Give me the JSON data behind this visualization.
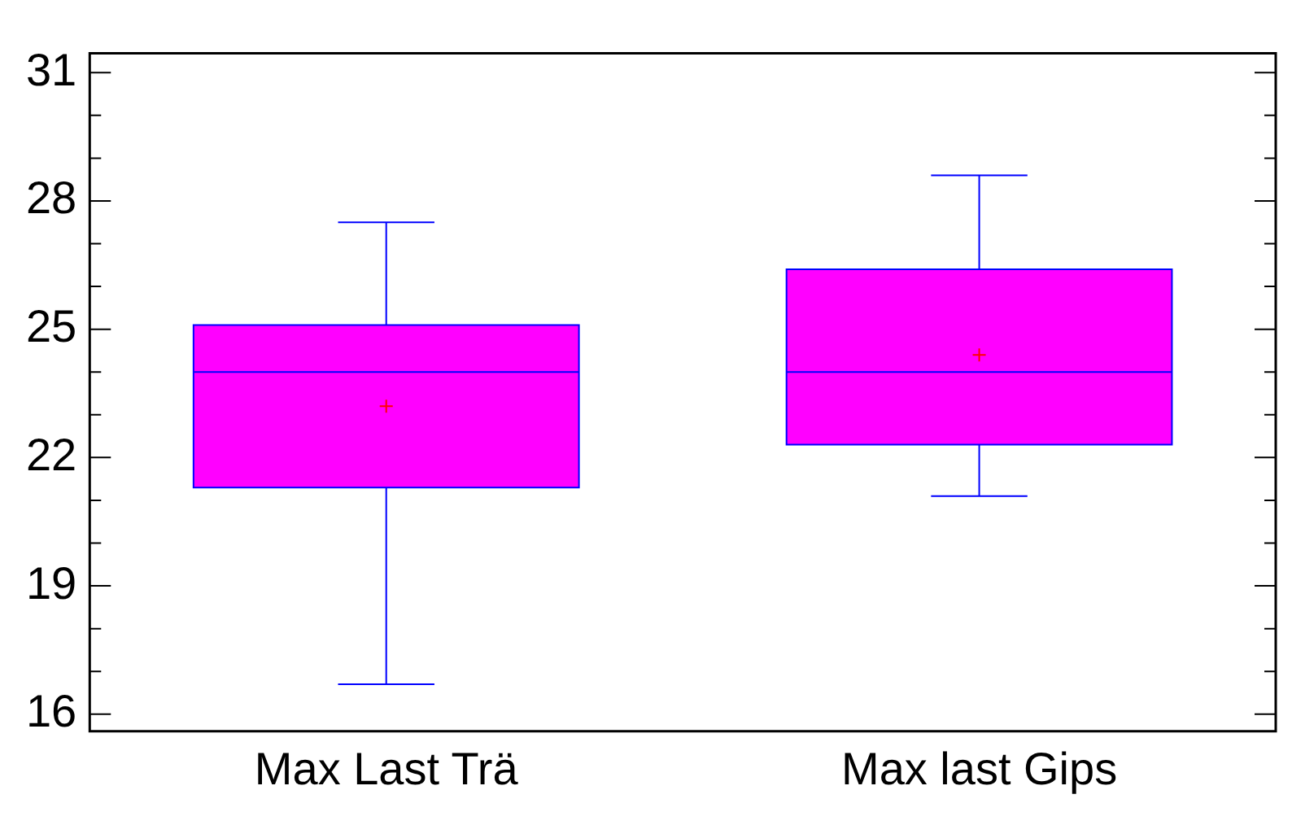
{
  "chart_data": {
    "type": "box",
    "categories": [
      "Max Last Trä",
      "Max last Gips"
    ],
    "series": [
      {
        "color": "#ff00ff",
        "boxes": [
          {
            "low": 16.7,
            "q1": 21.3,
            "median": 24.0,
            "q3": 25.1,
            "high": 27.5,
            "mean": 23.2
          },
          {
            "low": 21.1,
            "q1": 22.3,
            "median": 24.0,
            "q3": 26.4,
            "high": 28.6,
            "mean": 24.4
          }
        ]
      }
    ],
    "ylim": [
      15.6,
      31.45
    ],
    "yticks": [
      16,
      {
        "value": 17,
        "label": null
      },
      {
        "value": 18,
        "label": null
      },
      19,
      {
        "value": 20,
        "label": null
      },
      {
        "value": 21,
        "label": null
      },
      22,
      {
        "value": 23,
        "label": null
      },
      {
        "value": 24,
        "label": null
      },
      25,
      {
        "value": 26,
        "label": null
      },
      {
        "value": 27,
        "label": null
      },
      28,
      {
        "value": 29,
        "label": null
      },
      {
        "value": 30,
        "label": null
      },
      31
    ],
    "grid": false,
    "legend": false,
    "marker": "cross"
  }
}
